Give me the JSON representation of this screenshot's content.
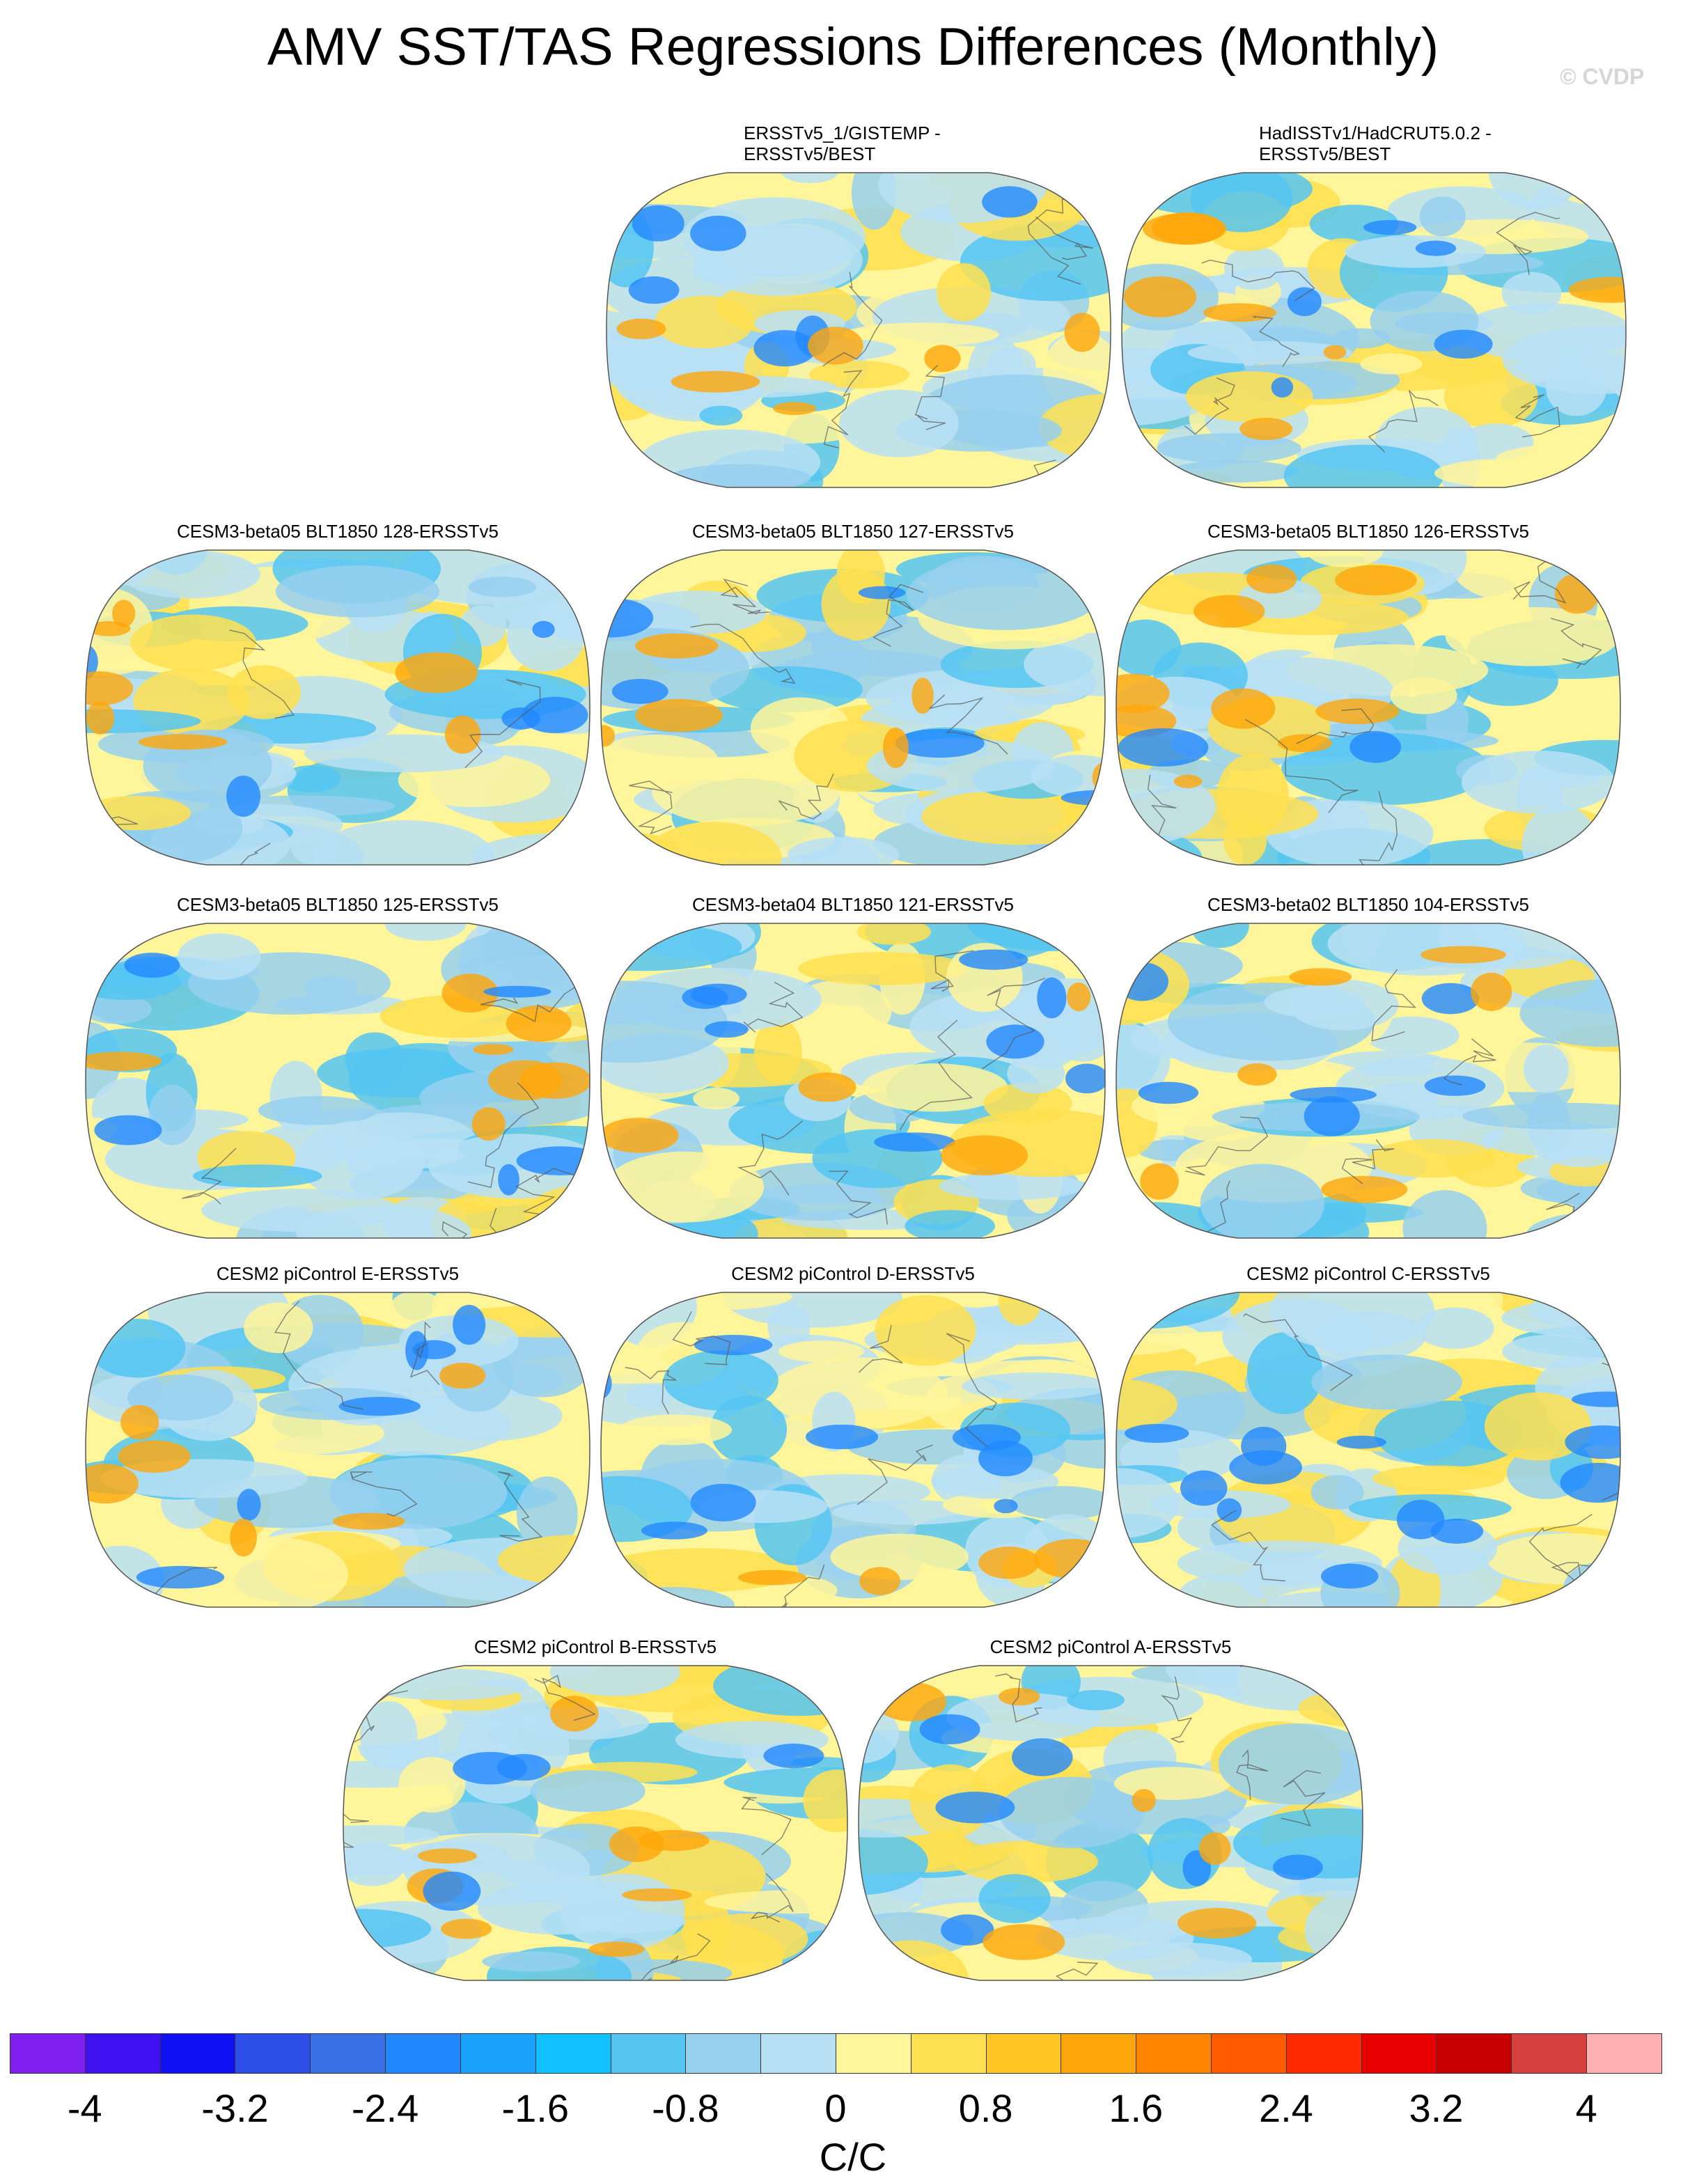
{
  "title": "AMV SST/TAS Regressions Differences (Monthly)",
  "watermark": "© CVDP",
  "panels": [
    {
      "id": "p1",
      "lines": [
        "ERSSTv5_1/GISTEMP -",
        "ERSSTv5/BEST"
      ],
      "seed": 11
    },
    {
      "id": "p2",
      "lines": [
        "HadISSTv1/HadCRUT5.0.2 -",
        "ERSSTv5/BEST"
      ],
      "seed": 23
    },
    {
      "id": "p3",
      "lines": [
        "CESM3-beta05 BLT1850 128-ERSSTv5"
      ],
      "seed": 37
    },
    {
      "id": "p4",
      "lines": [
        "CESM3-beta05 BLT1850 127-ERSSTv5"
      ],
      "seed": 41
    },
    {
      "id": "p5",
      "lines": [
        "CESM3-beta05 BLT1850 126-ERSSTv5"
      ],
      "seed": 53
    },
    {
      "id": "p6",
      "lines": [
        "CESM3-beta05 BLT1850 125-ERSSTv5"
      ],
      "seed": 67
    },
    {
      "id": "p7",
      "lines": [
        "CESM3-beta04 BLT1850 121-ERSSTv5"
      ],
      "seed": 71
    },
    {
      "id": "p8",
      "lines": [
        "CESM3-beta02 BLT1850 104-ERSSTv5"
      ],
      "seed": 83
    },
    {
      "id": "p9",
      "lines": [
        "CESM2 piControl E-ERSSTv5"
      ],
      "seed": 97
    },
    {
      "id": "p10",
      "lines": [
        "CESM2 piControl D-ERSSTv5"
      ],
      "seed": 101
    },
    {
      "id": "p11",
      "lines": [
        "CESM2 piControl C-ERSSTv5"
      ],
      "seed": 113
    },
    {
      "id": "p12",
      "lines": [
        "CESM2 piControl B-ERSSTv5"
      ],
      "seed": 127
    },
    {
      "id": "p13",
      "lines": [
        "CESM2 piControl A-ERSSTv5"
      ],
      "seed": 131
    }
  ],
  "colorbar": {
    "colors": [
      "#8020f0",
      "#4010f0",
      "#1010f5",
      "#2c4ee6",
      "#3a70e6",
      "#2288ff",
      "#1aa2ff",
      "#10c0ff",
      "#55c6f2",
      "#96d0ee",
      "#b8e0f4",
      "#fff59a",
      "#ffe050",
      "#ffc626",
      "#ffa60a",
      "#ff8500",
      "#ff5a00",
      "#ff2a00",
      "#e80000",
      "#c80000",
      "#d84040",
      "#ffb0b0"
    ],
    "tick_labels": [
      "-4",
      "-3.2",
      "-2.4",
      "-1.6",
      "-0.8",
      "0",
      "0.8",
      "1.6",
      "2.4",
      "3.2",
      "4"
    ],
    "units": "C/C"
  }
}
